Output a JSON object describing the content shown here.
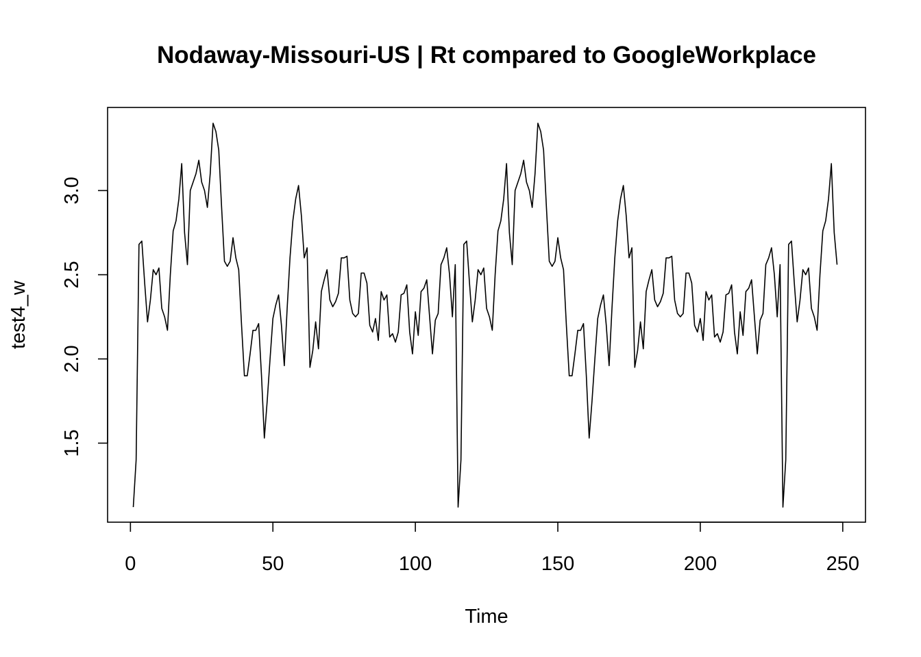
{
  "chart_data": {
    "type": "line",
    "title": "Nodaway-Missouri-US | Rt compared to GoogleWorkplace",
    "xlabel": "Time",
    "ylabel": "test4_w",
    "xlim": [
      1,
      248
    ],
    "ylim": [
      1.12,
      3.4
    ],
    "xticks": [
      "0",
      "50",
      "100",
      "150",
      "200",
      "250"
    ],
    "xtick_values": [
      0,
      50,
      100,
      150,
      200,
      250
    ],
    "yticks": [
      "1.5",
      "2.0",
      "2.5",
      "3.0"
    ],
    "ytick_values": [
      1.5,
      2.0,
      2.5,
      3.0
    ],
    "grid": false,
    "legend": "none",
    "line_color": "#000000",
    "series": [
      {
        "x": [
          1,
          2,
          3,
          4,
          5,
          6,
          7,
          8,
          9,
          10,
          11,
          12,
          13,
          14,
          15,
          16,
          17,
          18,
          19,
          20,
          21,
          22,
          23,
          24,
          25,
          26,
          27,
          28,
          29,
          30,
          31,
          32,
          33,
          34,
          35,
          36,
          37,
          38,
          39,
          40,
          41,
          42,
          43,
          44,
          45,
          46,
          47,
          48,
          49,
          50,
          51,
          52,
          53,
          54,
          55,
          56,
          57,
          58,
          59,
          60,
          61,
          62,
          63,
          64,
          65,
          66,
          67,
          68,
          69,
          70,
          71,
          72,
          73,
          74,
          75,
          76,
          77,
          78,
          79,
          80,
          81,
          82,
          83,
          84,
          85,
          86,
          87,
          88,
          89,
          90,
          91,
          92,
          93,
          94,
          95,
          96,
          97,
          98,
          99,
          100,
          101,
          102,
          103,
          104,
          105,
          106,
          107,
          108,
          109,
          110,
          111,
          112,
          113,
          114,
          115,
          116,
          117,
          118,
          119,
          120,
          121,
          122,
          123,
          124,
          125,
          126,
          127,
          128,
          129,
          130,
          131,
          132,
          133,
          134,
          135,
          136,
          137,
          138,
          139,
          140,
          141,
          142,
          143,
          144,
          145,
          146,
          147,
          148,
          149,
          150,
          151,
          152,
          153,
          154,
          155,
          156,
          157,
          158,
          159,
          160,
          161,
          162,
          163,
          164,
          165,
          166,
          167,
          168,
          169,
          170,
          171,
          172,
          173,
          174,
          175,
          176,
          177,
          178,
          179,
          180,
          181,
          182,
          183,
          184,
          185,
          186,
          187,
          188,
          189,
          190,
          191,
          192,
          193,
          194,
          195,
          196,
          197,
          198,
          199,
          200,
          201,
          202,
          203,
          204,
          205,
          206,
          207,
          208,
          209,
          210,
          211,
          212,
          213,
          214,
          215,
          216,
          217,
          218,
          219,
          220,
          221,
          222,
          223,
          224,
          225,
          226,
          227,
          228,
          229,
          230,
          231,
          232,
          233,
          234,
          235,
          236,
          237,
          238,
          239,
          240,
          241,
          242,
          243,
          244,
          245,
          246,
          247,
          248
        ],
        "values": [
          1.12,
          1.4,
          2.68,
          2.7,
          2.45,
          2.22,
          2.35,
          2.53,
          2.5,
          2.54,
          2.3,
          2.25,
          2.17,
          2.5,
          2.76,
          2.82,
          2.95,
          3.16,
          2.75,
          2.56,
          3.0,
          3.05,
          3.1,
          3.18,
          3.05,
          3.0,
          2.9,
          3.1,
          3.4,
          3.35,
          3.24,
          2.9,
          2.58,
          2.55,
          2.58,
          2.72,
          2.6,
          2.53,
          2.2,
          1.9,
          1.9,
          2.03,
          2.17,
          2.17,
          2.21,
          1.9,
          1.53,
          1.75,
          2.0,
          2.24,
          2.32,
          2.38,
          2.2,
          1.96,
          2.3,
          2.6,
          2.82,
          2.95,
          3.03,
          2.85,
          2.6,
          2.66,
          1.95,
          2.05,
          2.22,
          2.06,
          2.4,
          2.47,
          2.53,
          2.35,
          2.31,
          2.34,
          2.39,
          2.6,
          2.6,
          2.61,
          2.35,
          2.27,
          2.25,
          2.27,
          2.51,
          2.51,
          2.45,
          2.2,
          2.16,
          2.24,
          2.11,
          2.4,
          2.35,
          2.38,
          2.13,
          2.15,
          2.1,
          2.16,
          2.38,
          2.39,
          2.44,
          2.16,
          2.03,
          2.28,
          2.14,
          2.4,
          2.42,
          2.47,
          2.25,
          2.03,
          2.23,
          2.27,
          2.56,
          2.6,
          2.66,
          2.5,
          2.25,
          2.56,
          1.12,
          1.4,
          2.68,
          2.7,
          2.45,
          2.22,
          2.35,
          2.53,
          2.5,
          2.54,
          2.3,
          2.25,
          2.17,
          2.5,
          2.76,
          2.82,
          2.95,
          3.16,
          2.75,
          2.56,
          3.0,
          3.05,
          3.1,
          3.18,
          3.05,
          3.0,
          2.9,
          3.1,
          3.4,
          3.35,
          3.24,
          2.9,
          2.58,
          2.55,
          2.58,
          2.72,
          2.6,
          2.53,
          2.2,
          1.9,
          1.9,
          2.03,
          2.17,
          2.17,
          2.21,
          1.9,
          1.53,
          1.75,
          2.0,
          2.24,
          2.32,
          2.38,
          2.2,
          1.96,
          2.3,
          2.6,
          2.82,
          2.95,
          3.03,
          2.85,
          2.6,
          2.66,
          1.95,
          2.05,
          2.22,
          2.06,
          2.4,
          2.47,
          2.53,
          2.35,
          2.31,
          2.34,
          2.39,
          2.6,
          2.6,
          2.61,
          2.35,
          2.27,
          2.25,
          2.27,
          2.51,
          2.51,
          2.45,
          2.2,
          2.16,
          2.24,
          2.11,
          2.4,
          2.35,
          2.38,
          2.13,
          2.15,
          2.1,
          2.16,
          2.38,
          2.39,
          2.44,
          2.16,
          2.03,
          2.28,
          2.14,
          2.4,
          2.42,
          2.47,
          2.25,
          2.03,
          2.23,
          2.27,
          2.56,
          2.6,
          2.66,
          2.5,
          2.25,
          2.56,
          1.12,
          1.4,
          2.68,
          2.7,
          2.45,
          2.22,
          2.35,
          2.53,
          2.5,
          2.54,
          2.3,
          2.25,
          2.17,
          2.5,
          2.76,
          2.82,
          2.95,
          3.16,
          2.75,
          2.56
        ]
      }
    ]
  }
}
